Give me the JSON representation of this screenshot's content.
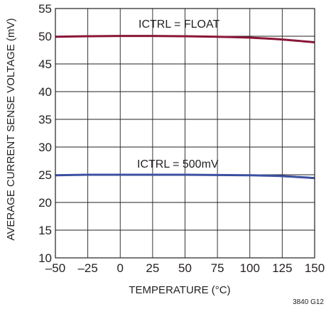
{
  "chart_data": {
    "type": "line",
    "xlabel": "TEMPERATURE (°C)",
    "ylabel": "AVERAGE CURRENT SENSE VOLTAGE (mV)",
    "xlim": [
      -50,
      150
    ],
    "ylim": [
      10,
      55
    ],
    "xticks": [
      -50,
      -25,
      0,
      25,
      50,
      75,
      100,
      125,
      150
    ],
    "yticks": [
      10,
      15,
      20,
      25,
      30,
      35,
      40,
      45,
      50,
      55
    ],
    "xtick_labels": [
      "–50",
      "–25",
      "0",
      "25",
      "50",
      "75",
      "100",
      "125",
      "150"
    ],
    "ytick_labels": [
      "10",
      "15",
      "20",
      "25",
      "30",
      "35",
      "40",
      "45",
      "50",
      "55"
    ],
    "grid": true,
    "legend": "none",
    "figure_id": "3840 G12",
    "series": [
      {
        "label": "ICTRL = FLOAT",
        "color": "#8b1538",
        "x": [
          -50,
          -25,
          0,
          25,
          50,
          75,
          100,
          125,
          150
        ],
        "y": [
          49.9,
          50.0,
          50.05,
          50.05,
          50.0,
          49.9,
          49.75,
          49.4,
          48.9
        ]
      },
      {
        "label": "ICTRL = 500mV",
        "color": "#3b50a0",
        "x": [
          -50,
          -25,
          0,
          25,
          50,
          75,
          100,
          125,
          150
        ],
        "y": [
          24.9,
          25.0,
          25.0,
          25.0,
          25.0,
          24.95,
          24.9,
          24.75,
          24.4
        ]
      }
    ]
  }
}
